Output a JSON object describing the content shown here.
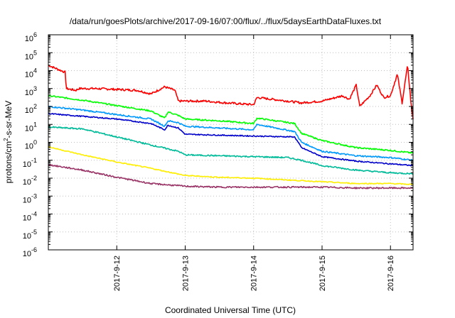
{
  "chart_data": {
    "type": "line",
    "title": "/data/run/goesPlots/archive/2017-09-16/07:00/flux/../flux/5daysEarthDataFluxes.txt",
    "xlabel": "Coordinated Universal Time (UTC)",
    "ylabel_prefix": "protons/cm",
    "ylabel_sup": "2",
    "ylabel_suffix": "-s-sr-MeV",
    "yscale": "log",
    "ylim_exponents": [
      -6,
      6
    ],
    "ytick_base": "10",
    "ytick_exponents": [
      "6",
      "5",
      "4",
      "3",
      "2",
      "1",
      "0",
      "-1",
      "-2",
      "-3",
      "-4",
      "-5",
      "-6"
    ],
    "xlim_days": [
      11.0,
      16.33
    ],
    "xticks": [
      {
        "label": "2017-9-12",
        "day": 12.0
      },
      {
        "label": "2017-9-13",
        "day": 13.0
      },
      {
        "label": "2017-9-14",
        "day": 14.0
      },
      {
        "label": "2017-9-15",
        "day": 15.0
      },
      {
        "label": "2017-9-16",
        "day": 16.0
      }
    ],
    "grid": true,
    "series": [
      {
        "color": "#ff0000",
        "noise": 0.06,
        "points": [
          [
            11.0,
            4.3
          ],
          [
            11.25,
            3.9
          ],
          [
            11.26,
            3.0
          ],
          [
            11.4,
            2.9
          ],
          [
            11.45,
            3.0
          ],
          [
            11.7,
            3.0
          ],
          [
            12.0,
            2.95
          ],
          [
            12.3,
            2.9
          ],
          [
            12.5,
            2.7
          ],
          [
            12.7,
            3.1
          ],
          [
            12.85,
            2.9
          ],
          [
            12.9,
            2.3
          ],
          [
            13.3,
            2.3
          ],
          [
            13.6,
            2.2
          ],
          [
            14.0,
            2.1
          ],
          [
            14.05,
            2.5
          ],
          [
            14.5,
            2.3
          ],
          [
            14.7,
            2.2
          ],
          [
            15.0,
            2.3
          ],
          [
            15.3,
            2.6
          ],
          [
            15.4,
            2.4
          ],
          [
            15.5,
            3.2
          ],
          [
            15.55,
            2.0
          ],
          [
            15.7,
            2.6
          ],
          [
            15.8,
            3.2
          ],
          [
            15.9,
            2.5
          ],
          [
            16.0,
            2.6
          ],
          [
            16.1,
            3.8
          ],
          [
            16.17,
            2.2
          ],
          [
            16.25,
            4.3
          ],
          [
            16.3,
            2.2
          ],
          [
            16.33,
            1.3
          ]
        ]
      },
      {
        "color": "#00ff00",
        "noise": 0.04,
        "points": [
          [
            11.0,
            2.6
          ],
          [
            11.5,
            2.35
          ],
          [
            12.0,
            2.05
          ],
          [
            12.5,
            1.75
          ],
          [
            12.7,
            1.35
          ],
          [
            12.75,
            1.7
          ],
          [
            12.9,
            1.5
          ],
          [
            13.0,
            1.3
          ],
          [
            13.5,
            1.2
          ],
          [
            14.0,
            1.05
          ],
          [
            14.05,
            1.35
          ],
          [
            14.6,
            1.05
          ],
          [
            14.7,
            0.5
          ],
          [
            15.0,
            0.1
          ],
          [
            15.5,
            -0.3
          ],
          [
            16.0,
            -0.45
          ],
          [
            16.33,
            -0.6
          ]
        ]
      },
      {
        "color": "#0099ff",
        "noise": 0.04,
        "points": [
          [
            11.0,
            2.0
          ],
          [
            11.5,
            1.8
          ],
          [
            12.0,
            1.55
          ],
          [
            12.5,
            1.3
          ],
          [
            12.7,
            0.9
          ],
          [
            12.75,
            1.2
          ],
          [
            12.9,
            1.1
          ],
          [
            13.0,
            0.9
          ],
          [
            13.5,
            0.8
          ],
          [
            14.0,
            0.7
          ],
          [
            14.05,
            1.0
          ],
          [
            14.6,
            0.6
          ],
          [
            14.7,
            0.0
          ],
          [
            15.0,
            -0.5
          ],
          [
            15.5,
            -0.75
          ],
          [
            16.0,
            -0.85
          ],
          [
            16.33,
            -1.0
          ]
        ]
      },
      {
        "color": "#0000cc",
        "noise": 0.03,
        "points": [
          [
            11.0,
            1.6
          ],
          [
            11.5,
            1.45
          ],
          [
            12.0,
            1.3
          ],
          [
            12.5,
            1.05
          ],
          [
            12.7,
            0.7
          ],
          [
            12.75,
            0.95
          ],
          [
            12.9,
            0.8
          ],
          [
            13.0,
            0.45
          ],
          [
            13.5,
            0.4
          ],
          [
            14.0,
            0.35
          ],
          [
            14.6,
            0.3
          ],
          [
            14.7,
            -0.3
          ],
          [
            15.0,
            -0.8
          ],
          [
            15.5,
            -1.05
          ],
          [
            16.0,
            -1.2
          ],
          [
            16.33,
            -1.3
          ]
        ]
      },
      {
        "color": "#00bb99",
        "noise": 0.04,
        "points": [
          [
            11.0,
            0.85
          ],
          [
            11.5,
            0.75
          ],
          [
            12.0,
            0.3
          ],
          [
            12.5,
            -0.15
          ],
          [
            12.9,
            -0.5
          ],
          [
            13.0,
            -0.7
          ],
          [
            13.5,
            -0.75
          ],
          [
            14.0,
            -0.8
          ],
          [
            14.5,
            -0.85
          ],
          [
            14.7,
            -1.0
          ],
          [
            15.0,
            -1.3
          ],
          [
            15.5,
            -1.55
          ],
          [
            16.0,
            -1.7
          ],
          [
            16.33,
            -1.75
          ]
        ]
      },
      {
        "color": "#ffee00",
        "noise": 0.03,
        "points": [
          [
            11.0,
            -0.25
          ],
          [
            11.5,
            -0.7
          ],
          [
            12.0,
            -1.1
          ],
          [
            12.5,
            -1.45
          ],
          [
            13.0,
            -1.85
          ],
          [
            13.5,
            -1.95
          ],
          [
            14.0,
            -2.0
          ],
          [
            14.5,
            -2.1
          ],
          [
            15.0,
            -2.2
          ],
          [
            15.5,
            -2.3
          ],
          [
            16.0,
            -2.3
          ],
          [
            16.33,
            -2.35
          ]
        ]
      },
      {
        "color": "#993366",
        "noise": 0.04,
        "points": [
          [
            11.0,
            -1.25
          ],
          [
            11.5,
            -1.55
          ],
          [
            12.0,
            -1.95
          ],
          [
            12.5,
            -2.3
          ],
          [
            13.0,
            -2.45
          ],
          [
            13.5,
            -2.5
          ],
          [
            14.0,
            -2.5
          ],
          [
            14.5,
            -2.5
          ],
          [
            15.0,
            -2.5
          ],
          [
            15.5,
            -2.55
          ],
          [
            16.0,
            -2.55
          ],
          [
            16.33,
            -2.55
          ]
        ]
      }
    ]
  }
}
